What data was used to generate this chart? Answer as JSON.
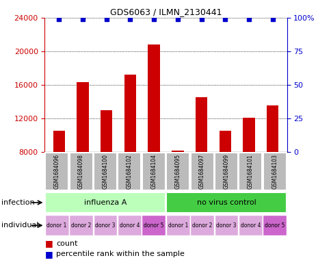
{
  "title": "GDS6063 / ILMN_2130441",
  "samples": [
    "GSM1684096",
    "GSM1684098",
    "GSM1684100",
    "GSM1684102",
    "GSM1684104",
    "GSM1684095",
    "GSM1684097",
    "GSM1684099",
    "GSM1684101",
    "GSM1684103"
  ],
  "counts": [
    10500,
    16300,
    13000,
    17200,
    20800,
    8200,
    14500,
    10500,
    12100,
    13500
  ],
  "percentiles": [
    99,
    99,
    99,
    99,
    99,
    99,
    99,
    99,
    99,
    99
  ],
  "ylim_left": [
    8000,
    24000
  ],
  "ylim_right": [
    0,
    100
  ],
  "yticks_left": [
    8000,
    12000,
    16000,
    20000,
    24000
  ],
  "yticks_right": [
    0,
    25,
    50,
    75,
    100
  ],
  "infection_groups": [
    {
      "label": "influenza A",
      "start": 0,
      "end": 5,
      "color": "#bbffbb"
    },
    {
      "label": "no virus control",
      "start": 5,
      "end": 10,
      "color": "#44cc44"
    }
  ],
  "individual_labels": [
    "donor 1",
    "donor 2",
    "donor 3",
    "donor 4",
    "donor 5",
    "donor 1",
    "donor 2",
    "donor 3",
    "donor 4",
    "donor 5"
  ],
  "individual_colors": [
    "#ddaadd",
    "#ddaadd",
    "#ddaadd",
    "#ddaadd",
    "#cc66cc",
    "#ddaadd",
    "#ddaadd",
    "#ddaadd",
    "#ddaadd",
    "#cc66cc"
  ],
  "bar_color": "#cc0000",
  "percentile_color": "#0000cc",
  "bar_width": 0.5,
  "background_sample": "#bbbbbb",
  "infection_row_label": "infection",
  "individual_row_label": "individual",
  "legend_count_label": "count",
  "legend_percentile_label": "percentile rank within the sample"
}
